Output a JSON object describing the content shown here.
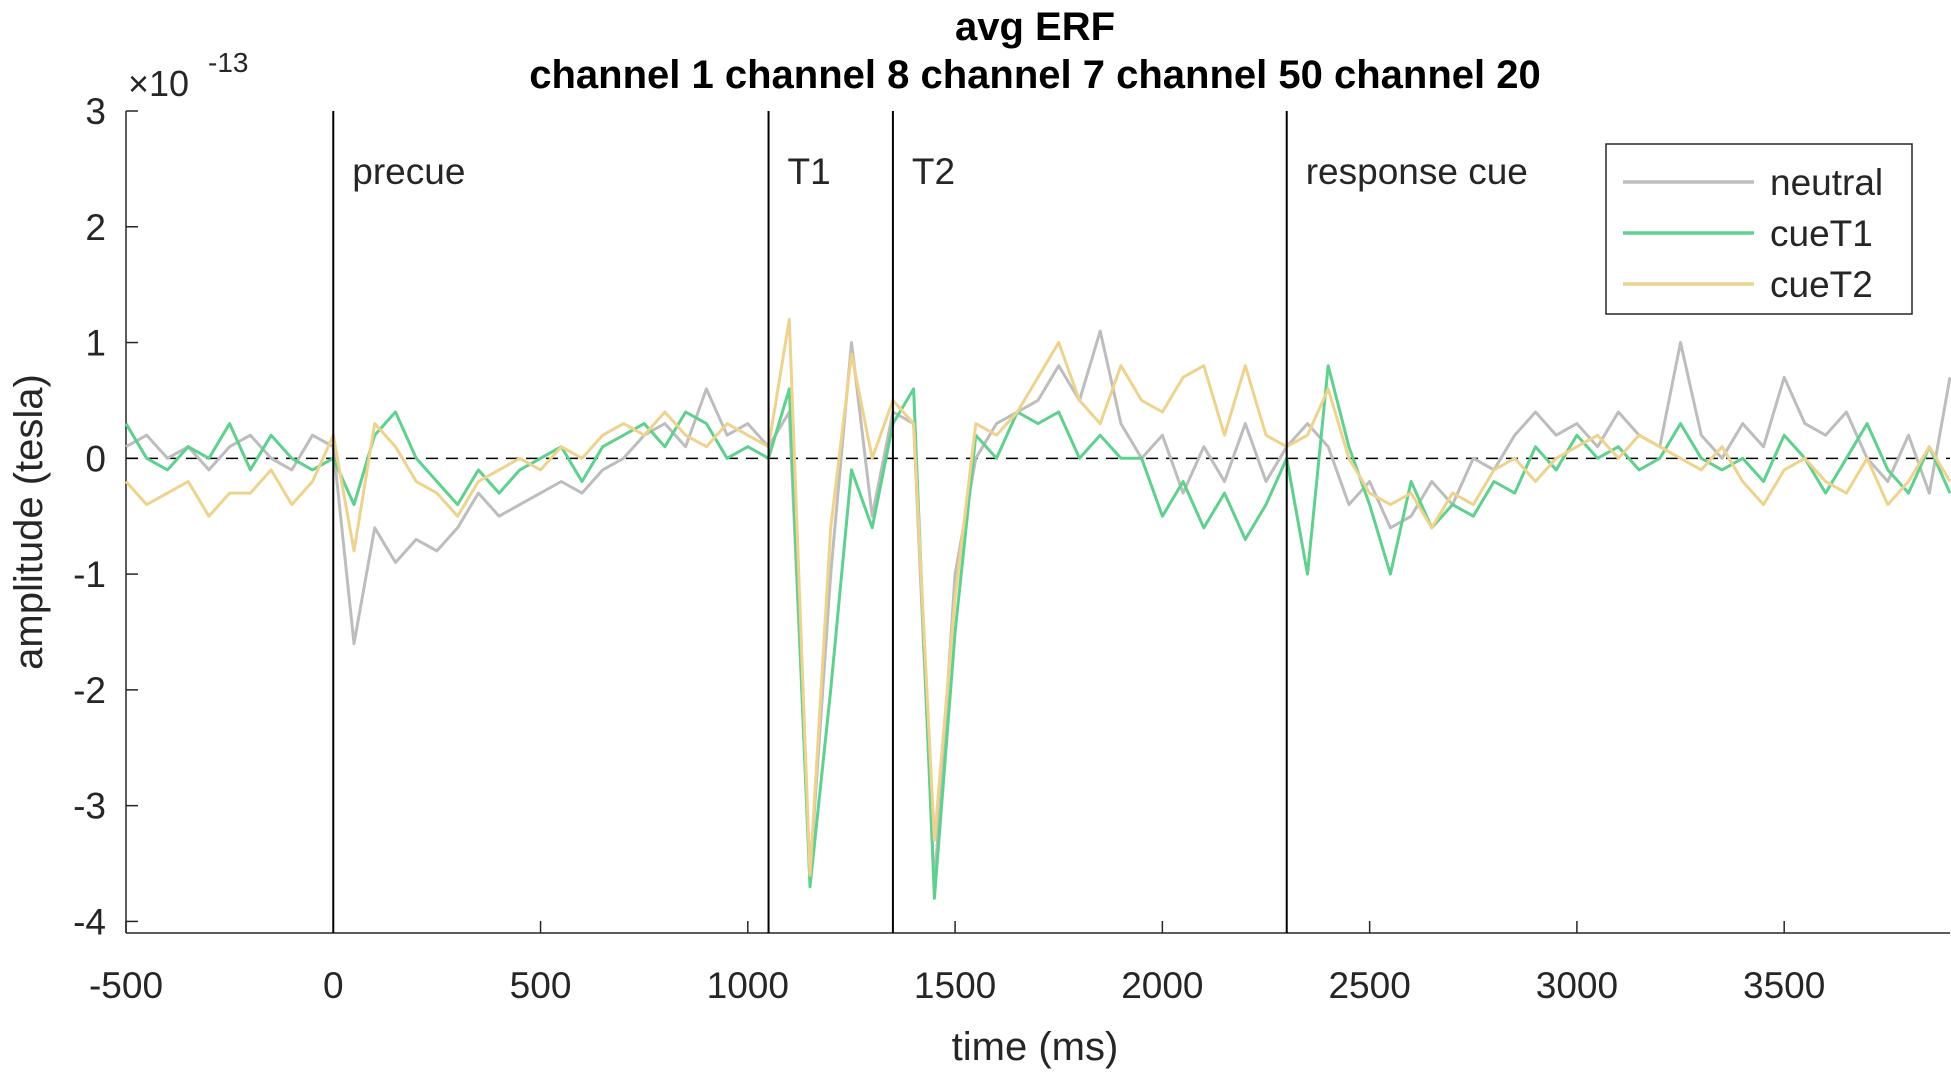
{
  "chart_data": {
    "type": "line",
    "title": [
      "avg ERF",
      "channel 1 channel 8 channel 7 channel 50 channel 20"
    ],
    "xlabel": "time (ms)",
    "ylabel": "amplitude (tesla)",
    "y_multiplier": {
      "base": "×10",
      "exponent": "-13"
    },
    "xlim": [
      -500,
      3900
    ],
    "ylim": [
      -4.1,
      3
    ],
    "xticks": [
      -500,
      0,
      500,
      1000,
      1500,
      2000,
      2500,
      3000,
      3500
    ],
    "yticks": [
      -4,
      -3,
      -2,
      -1,
      0,
      1,
      2,
      3
    ],
    "reference_line": 0,
    "events": [
      {
        "x": 0,
        "label": "precue"
      },
      {
        "x": 1050,
        "label": "T1"
      },
      {
        "x": 1350,
        "label": "T2"
      },
      {
        "x": 2300,
        "label": "response cue"
      }
    ],
    "legend": "upper right",
    "x": [
      -500,
      -450,
      -400,
      -350,
      -300,
      -250,
      -200,
      -150,
      -100,
      -50,
      0,
      50,
      100,
      150,
      200,
      250,
      300,
      350,
      400,
      450,
      500,
      550,
      600,
      650,
      700,
      750,
      800,
      850,
      900,
      950,
      1000,
      1050,
      1100,
      1150,
      1200,
      1250,
      1300,
      1350,
      1400,
      1450,
      1500,
      1550,
      1600,
      1650,
      1700,
      1750,
      1800,
      1850,
      1900,
      1950,
      2000,
      2050,
      2100,
      2150,
      2200,
      2250,
      2300,
      2350,
      2400,
      2450,
      2500,
      2550,
      2600,
      2650,
      2700,
      2750,
      2800,
      2850,
      2900,
      2950,
      3000,
      3050,
      3100,
      3150,
      3200,
      3250,
      3300,
      3350,
      3400,
      3450,
      3500,
      3550,
      3600,
      3650,
      3700,
      3750,
      3800,
      3850,
      3900
    ],
    "series": [
      {
        "name": "neutral",
        "color": "#bdbdbd",
        "values": [
          0.1,
          0.2,
          0.0,
          0.1,
          -0.1,
          0.1,
          0.2,
          0.0,
          -0.1,
          0.2,
          0.1,
          -1.6,
          -0.6,
          -0.9,
          -0.7,
          -0.8,
          -0.6,
          -0.3,
          -0.5,
          -0.4,
          -0.3,
          -0.2,
          -0.3,
          -0.1,
          0.0,
          0.2,
          0.3,
          0.1,
          0.6,
          0.2,
          0.3,
          0.1,
          0.4,
          -3.6,
          -1.0,
          1.0,
          -0.5,
          0.4,
          0.3,
          -3.7,
          -1.0,
          0.0,
          0.3,
          0.4,
          0.5,
          0.8,
          0.5,
          1.1,
          0.3,
          0.0,
          0.2,
          -0.3,
          0.1,
          -0.2,
          0.3,
          -0.2,
          0.1,
          0.3,
          0.1,
          -0.4,
          -0.2,
          -0.6,
          -0.5,
          -0.2,
          -0.4,
          0.0,
          -0.1,
          0.2,
          0.4,
          0.2,
          0.3,
          0.1,
          0.4,
          0.2,
          0.1,
          1.0,
          0.2,
          0.0,
          0.3,
          0.1,
          0.7,
          0.3,
          0.2,
          0.4,
          0.0,
          -0.2,
          0.2,
          -0.3,
          0.7
        ]
      },
      {
        "name": "cueT1",
        "color": "#5fd08e",
        "values": [
          0.3,
          0.0,
          -0.1,
          0.1,
          0.0,
          0.3,
          -0.1,
          0.2,
          0.0,
          -0.1,
          0.0,
          -0.4,
          0.2,
          0.4,
          0.0,
          -0.2,
          -0.4,
          -0.1,
          -0.3,
          -0.1,
          0.0,
          0.1,
          -0.2,
          0.1,
          0.2,
          0.3,
          0.1,
          0.4,
          0.3,
          0.0,
          0.1,
          0.0,
          0.6,
          -3.7,
          -2.0,
          -0.1,
          -0.6,
          0.3,
          0.6,
          -3.8,
          -1.5,
          0.2,
          0.0,
          0.4,
          0.3,
          0.4,
          0.0,
          0.2,
          0.0,
          0.0,
          -0.5,
          -0.2,
          -0.6,
          -0.3,
          -0.7,
          -0.4,
          0.0,
          -1.0,
          0.8,
          0.1,
          -0.4,
          -1.0,
          -0.2,
          -0.6,
          -0.4,
          -0.5,
          -0.2,
          -0.3,
          0.1,
          -0.1,
          0.2,
          0.0,
          0.1,
          -0.1,
          0.0,
          0.3,
          0.0,
          -0.1,
          0.0,
          -0.2,
          0.2,
          0.0,
          -0.3,
          0.0,
          0.3,
          -0.1,
          -0.3,
          0.1,
          -0.3
        ]
      },
      {
        "name": "cueT2",
        "color": "#eed38e",
        "values": [
          -0.2,
          -0.4,
          -0.3,
          -0.2,
          -0.5,
          -0.3,
          -0.3,
          -0.1,
          -0.4,
          -0.2,
          0.2,
          -0.8,
          0.3,
          0.1,
          -0.2,
          -0.3,
          -0.5,
          -0.2,
          -0.1,
          0.0,
          -0.1,
          0.1,
          0.0,
          0.2,
          0.3,
          0.2,
          0.4,
          0.2,
          0.1,
          0.3,
          0.2,
          0.1,
          1.2,
          -3.6,
          -0.6,
          0.9,
          0.0,
          0.5,
          0.3,
          -3.3,
          -1.2,
          0.3,
          0.2,
          0.4,
          0.7,
          1.0,
          0.5,
          0.3,
          0.8,
          0.5,
          0.4,
          0.7,
          0.8,
          0.2,
          0.8,
          0.2,
          0.1,
          0.2,
          0.6,
          0.0,
          -0.3,
          -0.4,
          -0.3,
          -0.6,
          -0.3,
          -0.4,
          -0.1,
          0.0,
          -0.2,
          0.0,
          0.1,
          0.2,
          0.0,
          0.2,
          0.1,
          0.0,
          -0.1,
          0.1,
          -0.2,
          -0.4,
          -0.1,
          0.0,
          -0.2,
          -0.3,
          0.0,
          -0.4,
          -0.2,
          0.1,
          -0.2
        ]
      }
    ]
  }
}
